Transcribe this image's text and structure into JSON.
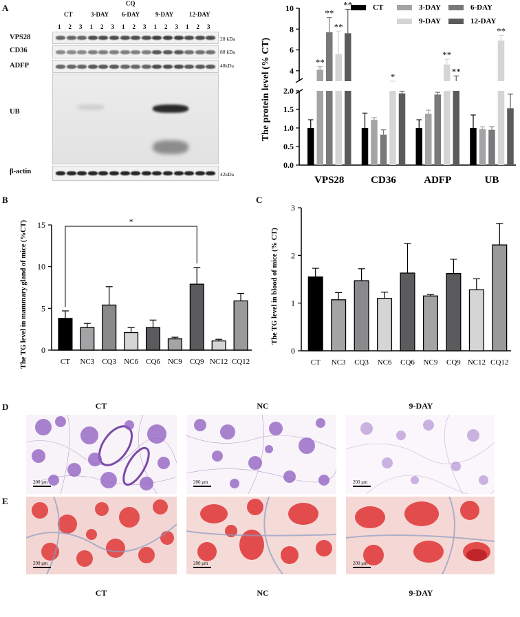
{
  "panels": {
    "a": "A",
    "b": "B",
    "c": "C",
    "d": "D",
    "e": "E"
  },
  "blot": {
    "treatment_label": "CQ",
    "groups": [
      "CT",
      "3-DAY",
      "6-DAY",
      "9-DAY",
      "12-DAY"
    ],
    "lanes": [
      "1",
      "2",
      "3",
      "1",
      "2",
      "3",
      "1",
      "2",
      "3",
      "1",
      "2",
      "3",
      "1",
      "2",
      "3"
    ],
    "rows": [
      {
        "name": "VPS28",
        "kda": "28 kDa"
      },
      {
        "name": "CD36",
        "kda": "88 kDa"
      },
      {
        "name": "ADFP",
        "kda": "48kDa"
      },
      {
        "name": "UB",
        "kda": ""
      },
      {
        "name": "β-actin",
        "kda": "42kDa"
      }
    ]
  },
  "chart_data": [
    {
      "type": "bar",
      "id": "protein",
      "title": "",
      "ylabel": "The protein level (% CT)",
      "xlabel": "",
      "categories": [
        "VPS28",
        "CD36",
        "ADFP",
        "UB"
      ],
      "broken_axis": {
        "lower": [
          0,
          2.0
        ],
        "upper": [
          3,
          10
        ]
      },
      "lower_ticks": [
        "0.0",
        "0.5",
        "1.0",
        "1.5",
        "2.0"
      ],
      "upper_ticks": [
        "4",
        "6",
        "8",
        "10"
      ],
      "legend": {
        "position": "top-right"
      },
      "series": [
        {
          "name": "CT",
          "color": "#000000",
          "values": [
            1.0,
            1.0,
            1.0,
            1.0
          ],
          "errors": [
            0.22,
            0.4,
            0.22,
            0.35
          ]
        },
        {
          "name": "3-DAY",
          "color": "#a4a4a6",
          "values": [
            4.1,
            1.22,
            1.38,
            0.97
          ],
          "errors": [
            0.3,
            0.06,
            0.1,
            0.06
          ]
        },
        {
          "name": "6-DAY",
          "color": "#79797b",
          "values": [
            7.7,
            0.82,
            1.9,
            0.95
          ],
          "errors": [
            1.4,
            0.13,
            0.06,
            0.08
          ]
        },
        {
          "name": "9-DAY",
          "color": "#d5d5d5",
          "values": [
            5.6,
            2.2,
            4.6,
            6.9
          ],
          "errors": [
            2.2,
            0.2,
            0.5,
            0.5
          ]
        },
        {
          "name": "12-DAY",
          "color": "#5b5b5d",
          "values": [
            7.6,
            1.93,
            3.0,
            1.53
          ],
          "errors": [
            2.3,
            0.06,
            0.5,
            0.38
          ]
        }
      ],
      "significance": [
        [
          "",
          "**",
          "**",
          "**",
          "**"
        ],
        [
          "",
          "",
          "",
          "*",
          ""
        ],
        [
          "",
          "",
          "",
          "**",
          "**"
        ],
        [
          "",
          "",
          "",
          "**",
          ""
        ]
      ]
    },
    {
      "type": "bar",
      "id": "tg_mammary",
      "title": "",
      "ylabel": "The TG level in mammary gland of mice (%CT)",
      "xlabel": "",
      "categories": [
        "CT",
        "NC3",
        "CQ3",
        "NC6",
        "CQ6",
        "NC9",
        "CQ9",
        "NC12",
        "CQ12"
      ],
      "values": [
        3.8,
        2.7,
        5.4,
        2.1,
        2.7,
        1.35,
        7.9,
        1.1,
        5.9
      ],
      "errors": [
        0.9,
        0.5,
        2.2,
        0.6,
        0.9,
        0.2,
        2.0,
        0.2,
        0.9
      ],
      "colors": [
        "#000000",
        "#a4a4a6",
        "#8a8a8c",
        "#d5d5d5",
        "#5b5b5d",
        "#a4a4a6",
        "#5b5b5d",
        "#d5d5d5",
        "#9a9a9c"
      ],
      "ylim": [
        0,
        15
      ],
      "yticks": [
        "0",
        "5",
        "10",
        "15"
      ],
      "bracket": {
        "from": "CT",
        "to": "CQ9",
        "label": "*"
      }
    },
    {
      "type": "bar",
      "id": "tg_blood",
      "title": "",
      "ylabel": "The TG level in blood of mice (% CT)",
      "xlabel": "",
      "categories": [
        "CT",
        "NC3",
        "CQ3",
        "NC6",
        "CQ6",
        "NC9",
        "CQ9",
        "NC12",
        "CQ12"
      ],
      "values": [
        1.55,
        1.07,
        1.47,
        1.1,
        1.63,
        1.15,
        1.62,
        1.28,
        2.22
      ],
      "errors": [
        0.18,
        0.15,
        0.25,
        0.13,
        0.62,
        0.03,
        0.3,
        0.23,
        0.45
      ],
      "colors": [
        "#000000",
        "#a4a4a6",
        "#8a8a8c",
        "#d5d5d5",
        "#5b5b5d",
        "#a4a4a6",
        "#5b5b5d",
        "#d5d5d5",
        "#9a9a9c"
      ],
      "ylim": [
        0,
        3
      ],
      "yticks": [
        "0",
        "1",
        "2",
        "3"
      ]
    }
  ],
  "histology": {
    "he_titles": [
      "CT",
      "NC",
      "9-DAY"
    ],
    "oro_titles": [
      "CT",
      "NC",
      "9-DAY"
    ],
    "scale_label": "200 μm"
  }
}
